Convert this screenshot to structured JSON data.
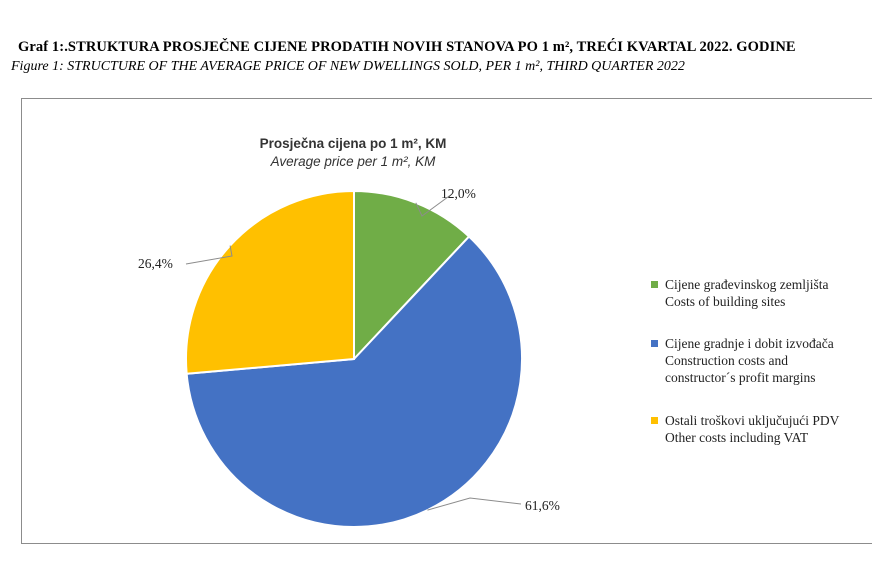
{
  "header": {
    "title": "Graf 1:.STRUKTURA PROSJEČNE CIJENE PRODATIH NOVIH STANOVA PO 1 m², TREĆI KVARTAL 2022. GODINE",
    "subtitle": "Figure 1: STRUCTURE OF THE AVERAGE PRICE OF NEW DWELLINGS SOLD, PER 1 m², THIRD QUARTER 2022"
  },
  "chart_data": {
    "type": "pie",
    "title": "Prosječna cijena po 1 m², KM",
    "subtitle": "Average price per 1 m², KM",
    "legend_position": "right",
    "slices": [
      {
        "value": 12.0,
        "label": "12,0%",
        "color": "#70ad47",
        "legend_lines": [
          "Cijene građevinskog zemljišta",
          "Costs of building sites"
        ]
      },
      {
        "value": 61.6,
        "label": "61,6%",
        "color": "#4472c4",
        "legend_lines": [
          "Cijene gradnje i dobit izvođača",
          "Construction costs and",
          "constructor´s profit margins"
        ]
      },
      {
        "value": 26.4,
        "label": "26,4%",
        "color": "#ffc000",
        "legend_lines": [
          "Ostali troškovi uključujući PDV",
          "Other costs including VAT"
        ]
      }
    ]
  }
}
